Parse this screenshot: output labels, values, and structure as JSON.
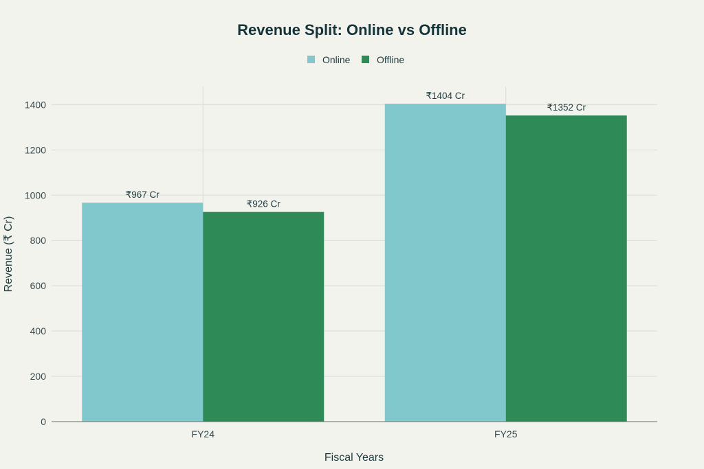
{
  "colors": {
    "online": "#80c8cb",
    "offline": "#2e8b57"
  },
  "chart_data": {
    "type": "bar",
    "title": "Revenue Split: Online vs Offline",
    "xlabel": "Fiscal Years",
    "ylabel": "Revenue (₹ Cr)",
    "categories": [
      "FY24",
      "FY25"
    ],
    "series": [
      {
        "name": "Online",
        "values": [
          967,
          1404
        ],
        "labels": [
          "₹967 Cr",
          "₹1404 Cr"
        ]
      },
      {
        "name": "Offline",
        "values": [
          926,
          1352
        ],
        "labels": [
          "₹926 Cr",
          "₹1352 Cr"
        ]
      }
    ],
    "ylim": [
      0,
      1480
    ],
    "yticks": [
      0,
      200,
      400,
      600,
      800,
      1000,
      1200,
      1400
    ],
    "grid": true,
    "legend": "top-center"
  }
}
